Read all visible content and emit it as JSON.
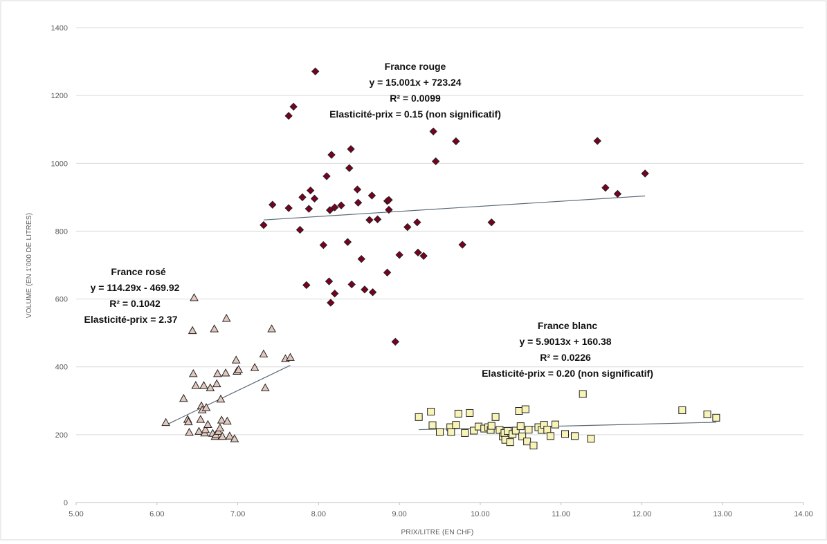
{
  "chart_data": {
    "type": "scatter",
    "title": "",
    "xlabel": "PRIX/LITRE (EN CHF)",
    "ylabel": "VOLUME (EN 1'000 DE LITRES)",
    "xlim": [
      5,
      14
    ],
    "ylim": [
      0,
      1400
    ],
    "x_ticks": [
      "5.00",
      "6.00",
      "7.00",
      "8.00",
      "9.00",
      "10.00",
      "11.00",
      "12.00",
      "13.00",
      "14.00"
    ],
    "y_ticks": [
      "0",
      "200",
      "400",
      "600",
      "800",
      "1000",
      "1200",
      "1400"
    ],
    "grid": "horizontal",
    "colors": {
      "rouge_fill": "#7a0020",
      "rose_fill": "#e3c8bd",
      "blanc_fill": "#f8f4b8",
      "marker_stroke": "#222222",
      "trendline": "#5a6a7a",
      "grid": "#d9d9d9"
    },
    "annotations": {
      "rouge": [
        "France rouge",
        "y = 15.001x + 723.24",
        "R² = 0.0099",
        "Elasticité-prix = 0.15 (non significatif)"
      ],
      "rose": [
        "France rosé",
        "y = 114.29x - 469.92",
        "R² = 0.1042",
        "Elasticité-prix = 2.37"
      ],
      "blanc": [
        "France blanc",
        "y = 5.9013x + 160.38",
        "R² = 0.0226",
        "Elasticité-prix = 0.20 (non significatif)"
      ]
    },
    "series": [
      {
        "key": "rouge",
        "marker": "diamond",
        "trendline": {
          "slope": 15.001,
          "intercept": 723.24,
          "x_range": [
            7.32,
            12.04
          ]
        },
        "points": [
          [
            7.32,
            818
          ],
          [
            7.43,
            878
          ],
          [
            7.63,
            868
          ],
          [
            7.63,
            1140
          ],
          [
            7.69,
            1167
          ],
          [
            7.77,
            804
          ],
          [
            7.8,
            900
          ],
          [
            7.85,
            641
          ],
          [
            7.88,
            866
          ],
          [
            7.9,
            920
          ],
          [
            7.95,
            896
          ],
          [
            7.96,
            1271
          ],
          [
            8.06,
            759
          ],
          [
            8.1,
            962
          ],
          [
            8.13,
            652
          ],
          [
            8.14,
            862
          ],
          [
            8.15,
            589
          ],
          [
            8.16,
            1025
          ],
          [
            8.2,
            870
          ],
          [
            8.2,
            616
          ],
          [
            8.28,
            876
          ],
          [
            8.36,
            768
          ],
          [
            8.38,
            986
          ],
          [
            8.4,
            1042
          ],
          [
            8.41,
            643
          ],
          [
            8.48,
            923
          ],
          [
            8.49,
            884
          ],
          [
            8.53,
            718
          ],
          [
            8.57,
            628
          ],
          [
            8.63,
            833
          ],
          [
            8.66,
            905
          ],
          [
            8.67,
            620
          ],
          [
            8.73,
            835
          ],
          [
            8.85,
            678
          ],
          [
            8.85,
            889
          ],
          [
            8.87,
            892
          ],
          [
            8.87,
            863
          ],
          [
            8.95,
            474
          ],
          [
            9.0,
            730
          ],
          [
            9.1,
            812
          ],
          [
            9.22,
            826
          ],
          [
            9.23,
            737
          ],
          [
            9.3,
            727
          ],
          [
            9.42,
            1094
          ],
          [
            9.45,
            1006
          ],
          [
            9.7,
            1065
          ],
          [
            9.78,
            760
          ],
          [
            10.14,
            826
          ],
          [
            11.45,
            1066
          ],
          [
            11.55,
            928
          ],
          [
            11.7,
            910
          ],
          [
            12.04,
            970
          ]
        ]
      },
      {
        "key": "rose",
        "marker": "triangle",
        "trendline": {
          "slope": 114.29,
          "intercept": -469.92,
          "x_range": [
            6.11,
            7.65
          ]
        },
        "points": [
          [
            6.11,
            236
          ],
          [
            6.33,
            307
          ],
          [
            6.38,
            245
          ],
          [
            6.39,
            238
          ],
          [
            6.4,
            207
          ],
          [
            6.44,
            507
          ],
          [
            6.45,
            380
          ],
          [
            6.46,
            604
          ],
          [
            6.48,
            345
          ],
          [
            6.52,
            210
          ],
          [
            6.54,
            245
          ],
          [
            6.55,
            285
          ],
          [
            6.56,
            273
          ],
          [
            6.58,
            345
          ],
          [
            6.59,
            205
          ],
          [
            6.6,
            215
          ],
          [
            6.61,
            280
          ],
          [
            6.63,
            230
          ],
          [
            6.66,
            338
          ],
          [
            6.69,
            204
          ],
          [
            6.71,
            512
          ],
          [
            6.72,
            195
          ],
          [
            6.73,
            200
          ],
          [
            6.74,
            350
          ],
          [
            6.75,
            380
          ],
          [
            6.76,
            210
          ],
          [
            6.78,
            220
          ],
          [
            6.79,
            305
          ],
          [
            6.8,
            243
          ],
          [
            6.81,
            195
          ],
          [
            6.85,
            382
          ],
          [
            6.86,
            543
          ],
          [
            6.87,
            240
          ],
          [
            6.9,
            196
          ],
          [
            6.96,
            188
          ],
          [
            6.98,
            420
          ],
          [
            6.99,
            387
          ],
          [
            7.01,
            392
          ],
          [
            7.21,
            398
          ],
          [
            7.32,
            438
          ],
          [
            7.34,
            338
          ],
          [
            7.42,
            512
          ],
          [
            7.59,
            424
          ],
          [
            7.65,
            428
          ]
        ]
      },
      {
        "key": "blanc",
        "marker": "square",
        "trendline": {
          "slope": 5.9013,
          "intercept": 160.38,
          "x_range": [
            9.24,
            12.92
          ]
        },
        "points": [
          [
            9.24,
            252
          ],
          [
            9.39,
            268
          ],
          [
            9.41,
            228
          ],
          [
            9.5,
            208
          ],
          [
            9.63,
            222
          ],
          [
            9.64,
            208
          ],
          [
            9.7,
            229
          ],
          [
            9.73,
            262
          ],
          [
            9.81,
            205
          ],
          [
            9.87,
            264
          ],
          [
            9.92,
            212
          ],
          [
            9.98,
            224
          ],
          [
            10.05,
            218
          ],
          [
            10.1,
            222
          ],
          [
            10.13,
            214
          ],
          [
            10.14,
            226
          ],
          [
            10.19,
            252
          ],
          [
            10.24,
            214
          ],
          [
            10.28,
            195
          ],
          [
            10.3,
            205
          ],
          [
            10.31,
            185
          ],
          [
            10.34,
            211
          ],
          [
            10.37,
            178
          ],
          [
            10.4,
            202
          ],
          [
            10.44,
            212
          ],
          [
            10.48,
            270
          ],
          [
            10.5,
            225
          ],
          [
            10.52,
            195
          ],
          [
            10.56,
            275
          ],
          [
            10.58,
            180
          ],
          [
            10.6,
            215
          ],
          [
            10.66,
            168
          ],
          [
            10.72,
            222
          ],
          [
            10.76,
            214
          ],
          [
            10.79,
            229
          ],
          [
            10.83,
            215
          ],
          [
            10.87,
            196
          ],
          [
            10.93,
            230
          ],
          [
            11.05,
            202
          ],
          [
            11.17,
            196
          ],
          [
            11.27,
            320
          ],
          [
            11.37,
            188
          ],
          [
            12.5,
            272
          ],
          [
            12.81,
            260
          ],
          [
            12.92,
            250
          ]
        ]
      }
    ]
  }
}
